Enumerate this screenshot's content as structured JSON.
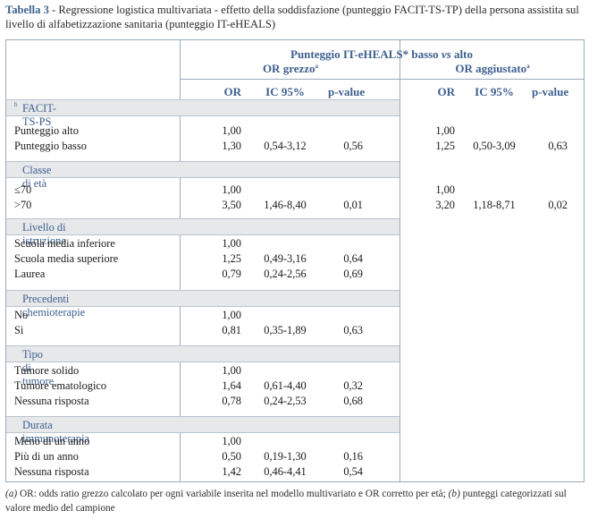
{
  "caption": {
    "label": "Tabella 3",
    "text": " - Regressione logistica multivariata - effetto della soddisfazione (punteggio FACIT-TS-TP) della persona assistita sul livello di alfabetizzazione sanitaria (punteggio IT-eHEALS)"
  },
  "header": {
    "title_a": "Punteggio IT-eHEALS* basso ",
    "title_vs": "vs",
    "title_b": " alto",
    "group1": "OR grezzo",
    "group1_sup": "a",
    "group2": "OR aggiustato",
    "group2_sup": "a",
    "col_or": "OR",
    "col_ic": "IC 95%",
    "col_pv": "p-value"
  },
  "sections": [
    {
      "title": "FACIT-TS-PS",
      "sup": "b",
      "rows": [
        {
          "label": "Punteggio alto",
          "or1": "1,00",
          "ic1": "",
          "pv1": "",
          "or2": "1,00",
          "ic2": "",
          "pv2": ""
        },
        {
          "label": "Punteggio basso",
          "or1": "1,30",
          "ic1": "0,54-3,12",
          "pv1": "0,56",
          "or2": "1,25",
          "ic2": "0,50-3,09",
          "pv2": "0,63"
        }
      ]
    },
    {
      "title": "Classe di età",
      "sup": "",
      "rows": [
        {
          "label": "≤70",
          "or1": "1,00",
          "ic1": "",
          "pv1": "",
          "or2": "1,00",
          "ic2": "",
          "pv2": ""
        },
        {
          "label": ">70",
          "or1": "3,50",
          "ic1": "1,46-8,40",
          "pv1": "0,01",
          "or2": "3,20",
          "ic2": "1,18-8,71",
          "pv2": "0,02"
        }
      ]
    },
    {
      "title": "Livello di istruzione",
      "sup": "",
      "rows": [
        {
          "label": "Scuola media inferiore",
          "or1": "1,00",
          "ic1": "",
          "pv1": "",
          "or2": "",
          "ic2": "",
          "pv2": ""
        },
        {
          "label": "Scuola media superiore",
          "or1": "1,25",
          "ic1": "0,49-3,16",
          "pv1": "0,64",
          "or2": "",
          "ic2": "",
          "pv2": ""
        },
        {
          "label": "Laurea",
          "or1": "0,79",
          "ic1": "0,24-2,56",
          "pv1": "0,69",
          "or2": "",
          "ic2": "",
          "pv2": ""
        }
      ]
    },
    {
      "title": "Precedenti chemioterapie",
      "sup": "",
      "rows": [
        {
          "label": "No",
          "or1": "1,00",
          "ic1": "",
          "pv1": "",
          "or2": "",
          "ic2": "",
          "pv2": ""
        },
        {
          "label": "Sì",
          "or1": "0,81",
          "ic1": "0,35-1,89",
          "pv1": "0,63",
          "or2": "",
          "ic2": "",
          "pv2": ""
        }
      ]
    },
    {
      "title": "Tipo di tumore",
      "sup": "",
      "rows": [
        {
          "label": "Tumore solido",
          "or1": "1,00",
          "ic1": "",
          "pv1": "",
          "or2": "",
          "ic2": "",
          "pv2": ""
        },
        {
          "label": "Tumore ematologico",
          "or1": "1,64",
          "ic1": "0,61-4,40",
          "pv1": "0,32",
          "or2": "",
          "ic2": "",
          "pv2": ""
        },
        {
          "label": "Nessuna risposta",
          "or1": "0,78",
          "ic1": "0,24-2,53",
          "pv1": "0,68",
          "or2": "",
          "ic2": "",
          "pv2": ""
        }
      ]
    },
    {
      "title": "Durata immunoterapia",
      "sup": "",
      "rows": [
        {
          "label": "Meno di un anno",
          "or1": "1,00",
          "ic1": "",
          "pv1": "",
          "or2": "",
          "ic2": "",
          "pv2": ""
        },
        {
          "label": "Più di un anno",
          "or1": "0,50",
          "ic1": "0,19-1,30",
          "pv1": "0,16",
          "or2": "",
          "ic2": "",
          "pv2": ""
        },
        {
          "label": "Nessuna risposta",
          "or1": "1,42",
          "ic1": "0,46-4,41",
          "pv1": "0,54",
          "or2": "",
          "ic2": "",
          "pv2": ""
        }
      ]
    }
  ],
  "footnote": {
    "a_mark": "(a)",
    "a_text": " OR: odds ratio grezzo calcolato per ogni variabile inserita nel modello multivariato e OR corretto per età; ",
    "b_mark": "(b)",
    "b_text": " punteggi categorizzati sul valore medio del campione"
  },
  "colors": {
    "accent": "#3d5f8f",
    "band": "#e7e8ea",
    "rule": "#9aa9bd"
  }
}
